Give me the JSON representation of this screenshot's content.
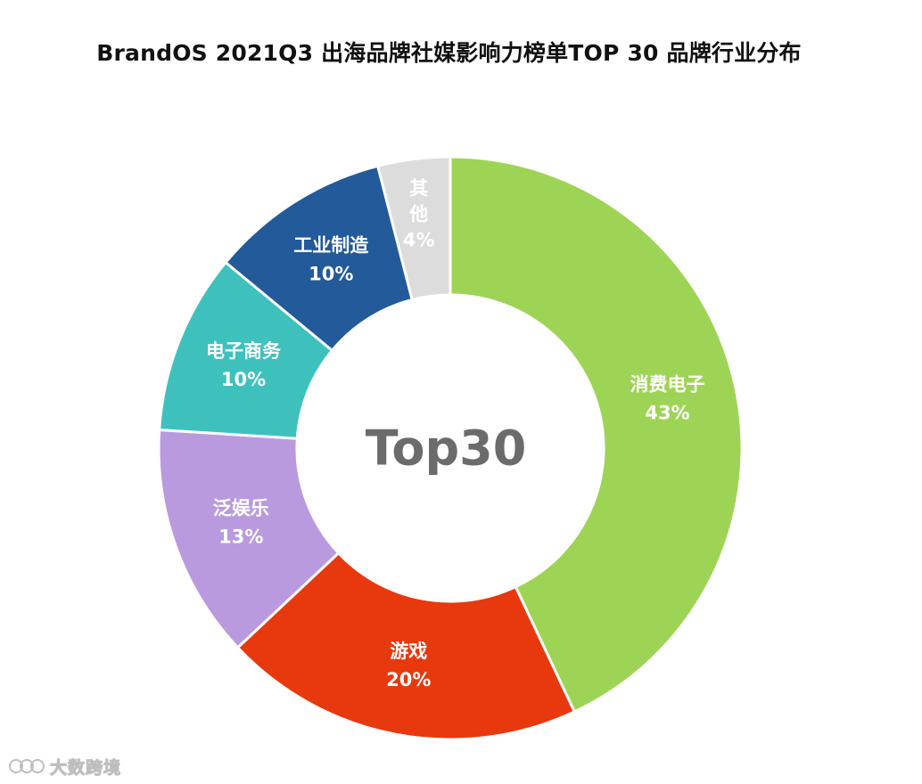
{
  "chart_data": {
    "type": "pie",
    "title": "BrandOS 2021Q3 出海品牌社媒影响力榜单TOP 30 品牌行业分布",
    "center_label": "Top30",
    "slices": [
      {
        "label": "消费电子",
        "value": 43,
        "value_label": "43%",
        "color": "#9ed455"
      },
      {
        "label": "游戏",
        "value": 20,
        "value_label": "20%",
        "color": "#e8380d"
      },
      {
        "label": "泛娱乐",
        "value": 13,
        "value_label": "13%",
        "color": "#b99ade"
      },
      {
        "label": "电子商务",
        "value": 10,
        "value_label": "10%",
        "color": "#3ec1bd"
      },
      {
        "label": "工业制造",
        "value": 10,
        "value_label": "10%",
        "color": "#225a9a"
      },
      {
        "label": "其他",
        "value": 4,
        "value_label": "4%",
        "color": "#dcdcdc"
      }
    ]
  },
  "watermark": {
    "text": "大数跨境"
  }
}
